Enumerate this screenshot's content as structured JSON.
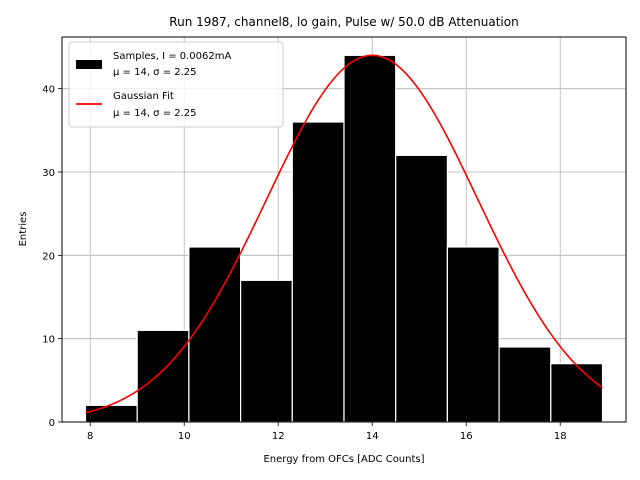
{
  "chart_data": {
    "type": "bar",
    "title": "Run 1987, channel8, lo gain, Pulse w/ 50.0 dB Attenuation",
    "xlabel": "Energy from OFCs [ADC Counts]",
    "ylabel": "Entries",
    "xlim": [
      7.4,
      19.4
    ],
    "ylim": [
      0,
      46.2
    ],
    "xticks": [
      8,
      10,
      12,
      14,
      16,
      18
    ],
    "yticks": [
      0,
      10,
      20,
      30,
      40
    ],
    "grid": true,
    "legend_position": "top-left",
    "bins": [
      {
        "left": 7.9,
        "right": 9.0,
        "value": 2
      },
      {
        "left": 9.0,
        "right": 10.1,
        "value": 11
      },
      {
        "left": 10.1,
        "right": 11.2,
        "value": 21
      },
      {
        "left": 11.2,
        "right": 12.3,
        "value": 17
      },
      {
        "left": 12.3,
        "right": 13.4,
        "value": 36
      },
      {
        "left": 13.4,
        "right": 14.5,
        "value": 44
      },
      {
        "left": 14.5,
        "right": 15.6,
        "value": 32
      },
      {
        "left": 15.6,
        "right": 16.7,
        "value": 21
      },
      {
        "left": 16.7,
        "right": 17.8,
        "value": 9
      },
      {
        "left": 17.8,
        "right": 18.9,
        "value": 7
      }
    ],
    "fit": {
      "mu": 14,
      "sigma": 2.25,
      "amplitude": 44,
      "x_range": [
        7.9,
        18.9
      ]
    },
    "series": [
      {
        "name": "Samples, I = 0.0062mA",
        "detail": "μ = 14, σ = 2.25",
        "color": "#000000",
        "kind": "histogram"
      },
      {
        "name": "Gaussian Fit",
        "detail": "μ = 14, σ = 2.25",
        "color": "#ff0000",
        "kind": "line"
      }
    ]
  }
}
